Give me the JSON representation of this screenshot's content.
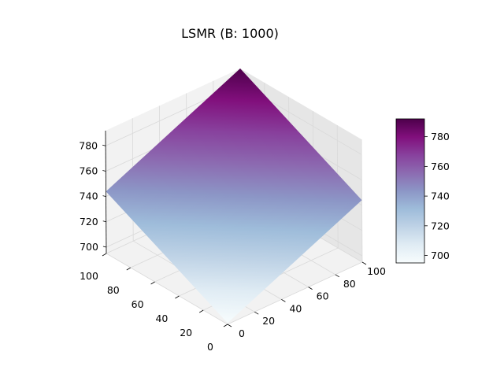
{
  "chart_data": {
    "type": "surface3d",
    "title": "LSMR (B: 1000)",
    "x_axis": {
      "label": "",
      "range": [
        0,
        100
      ],
      "ticks": [
        0,
        20,
        40,
        60,
        80,
        100
      ]
    },
    "y_axis": {
      "label": "",
      "range": [
        0,
        100
      ],
      "ticks": [
        0,
        20,
        40,
        60,
        80,
        100
      ]
    },
    "z_axis": {
      "label": "",
      "range": [
        695,
        792
      ],
      "ticks": [
        700,
        720,
        740,
        760,
        780
      ]
    },
    "surface": {
      "description_formula": "z = 696 + 0.48*x + 0.48*y",
      "corners": [
        {
          "x": 0,
          "y": 0,
          "z": 696
        },
        {
          "x": 100,
          "y": 0,
          "z": 744
        },
        {
          "x": 0,
          "y": 100,
          "z": 744
        },
        {
          "x": 100,
          "y": 100,
          "z": 792
        }
      ]
    },
    "colorbar": {
      "colormap": "BuPu",
      "range": [
        695,
        792
      ],
      "ticks": [
        700,
        720,
        740,
        760,
        780
      ]
    },
    "grid": true,
    "colors": {
      "pane": "#f2f2f2",
      "pane_side": "#e6e6e6",
      "grid": "#d9d9d9"
    }
  }
}
